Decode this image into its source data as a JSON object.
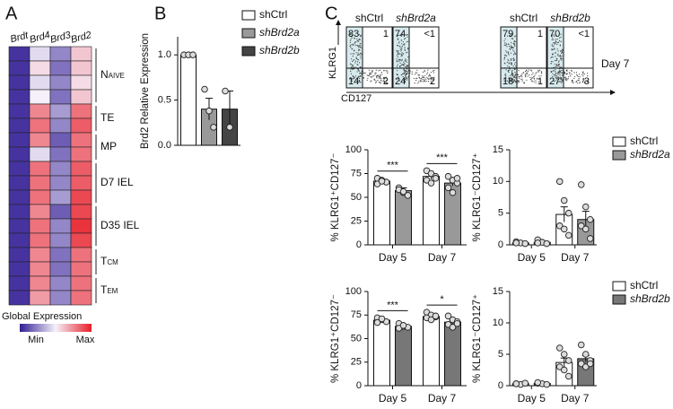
{
  "panels": [
    "A",
    "B",
    "C"
  ],
  "flow_panel": {
    "y_label": "KLRG1",
    "x_label": "CD127",
    "day": "Day 7",
    "plots": [
      {
        "title": "shCtrl",
        "quadrants": [
          "83",
          "1",
          "14",
          "2"
        ]
      },
      {
        "title": "shBrd2a",
        "quadrants": [
          "74",
          "<1",
          "24",
          "2"
        ]
      },
      {
        "title": "shCtrl",
        "quadrants": [
          "79",
          "1",
          "18",
          "1"
        ]
      },
      {
        "title": "shBrd2b",
        "quadrants": [
          "70",
          "<1",
          "27",
          "3"
        ]
      }
    ]
  },
  "chart_data": [
    {
      "type": "heatmap",
      "columns": [
        "Brdt",
        "Brd4",
        "Brd3",
        "Brd2"
      ],
      "groups": [
        {
          "label": "Naive",
          "rows": 4
        },
        {
          "label": "TE",
          "rows": 2
        },
        {
          "label": "MP",
          "rows": 2
        },
        {
          "label": "D7 IEL",
          "rows": 3
        },
        {
          "label": "D35 IEL",
          "rows": 3
        },
        {
          "label": "Tcm",
          "rows": 2
        },
        {
          "label": "Tem",
          "rows": 2
        }
      ],
      "values": [
        [
          0.05,
          0.45,
          0.25,
          0.6
        ],
        [
          0.05,
          0.55,
          0.2,
          0.6
        ],
        [
          0.05,
          0.45,
          0.25,
          0.55
        ],
        [
          0.05,
          0.5,
          0.2,
          0.6
        ],
        [
          0.05,
          0.75,
          0.3,
          0.8
        ],
        [
          0.05,
          0.8,
          0.25,
          0.85
        ],
        [
          0.05,
          0.75,
          0.15,
          0.8
        ],
        [
          0.05,
          0.45,
          0.2,
          0.8
        ],
        [
          0.05,
          0.8,
          0.25,
          0.85
        ],
        [
          0.05,
          0.8,
          0.25,
          0.85
        ],
        [
          0.05,
          0.8,
          0.3,
          0.9
        ],
        [
          0.05,
          0.75,
          0.15,
          0.9
        ],
        [
          0.05,
          0.8,
          0.25,
          0.95
        ],
        [
          0.05,
          0.8,
          0.25,
          0.9
        ],
        [
          0.05,
          0.75,
          0.2,
          0.8
        ],
        [
          0.05,
          0.75,
          0.2,
          0.8
        ],
        [
          0.05,
          0.75,
          0.25,
          0.8
        ],
        [
          0.05,
          0.7,
          0.25,
          0.8
        ]
      ],
      "clim": [
        0,
        1
      ],
      "colorbar_title": "Global Expression",
      "colorbar_labels": [
        "Min",
        "Max"
      ]
    },
    {
      "type": "bar",
      "ylabel": "Brd2 Relative Expression",
      "ylim": [
        0,
        1.2
      ],
      "yticks": [
        {
          "value": 0,
          "label": "0.0"
        },
        {
          "value": 0.5,
          "label": "0.5"
        },
        {
          "value": 1,
          "label": "1.0"
        }
      ],
      "legend": true,
      "series": [
        {
          "name": "shCtrl",
          "color": "#ffffff",
          "values": [
            1.0
          ],
          "errors": [
            0
          ],
          "points": [
            [
              1,
              1,
              1
            ]
          ]
        },
        {
          "name": "shBrd2a",
          "color": "#999999",
          "values": [
            0.4
          ],
          "errors": [
            0.12
          ],
          "points": [
            [
              0.62,
              0.38,
              0.2
            ]
          ]
        },
        {
          "name": "shBrd2b",
          "color": "#444444",
          "values": [
            0.4
          ],
          "errors": [
            0.2
          ],
          "points": [
            [
              0.6,
              0.2
            ]
          ]
        }
      ]
    },
    {
      "type": "bar",
      "ylabel": "% KLRG1⁺CD127⁻",
      "ylim": [
        0,
        100
      ],
      "yticks": [
        0,
        25,
        50,
        75,
        100
      ],
      "legend": true,
      "categories": [
        "Day 5",
        "Day 7"
      ],
      "annotations": [
        "***",
        "***"
      ],
      "series": [
        {
          "name": "shCtrl",
          "color": "#ffffff",
          "values": [
            67,
            72
          ],
          "errors": [
            2,
            3
          ],
          "points": [
            [
              70,
              68,
              66,
              64,
              67
            ],
            [
              78,
              75,
              72,
              68,
              65,
              70
            ]
          ]
        },
        {
          "name": "shBrd2a",
          "color": "#999999",
          "values": [
            57,
            65
          ],
          "errors": [
            3,
            3
          ],
          "points": [
            [
              60,
              55,
              52,
              58,
              56
            ],
            [
              72,
              68,
              65,
              60,
              55,
              70
            ]
          ]
        }
      ]
    },
    {
      "type": "bar",
      "ylabel": "% KLRG1⁻CD127⁺",
      "ylim": [
        0,
        15
      ],
      "yticks": [
        0,
        5,
        10,
        15
      ],
      "legend": false,
      "categories": [
        "Day 5",
        "Day 7"
      ],
      "series": [
        {
          "name": "shCtrl",
          "color": "#ffffff",
          "values": [
            0.3,
            4.8
          ],
          "errors": [
            0.1,
            1.2
          ],
          "points": [
            [
              0.5,
              0.3,
              0.2,
              0.3
            ],
            [
              10,
              7,
              5,
              3,
              2.5,
              1.5
            ]
          ]
        },
        {
          "name": "shBrd2a",
          "color": "#999999",
          "values": [
            0.4,
            4.0
          ],
          "errors": [
            0.15,
            1.3
          ],
          "points": [
            [
              0.8,
              0.4,
              0.2,
              0.3
            ],
            [
              9.5,
              6,
              4,
              3,
              2.5,
              1
            ]
          ]
        }
      ]
    },
    {
      "type": "bar",
      "ylabel": "% KLRG1⁺CD127⁻",
      "ylim": [
        0,
        100
      ],
      "yticks": [
        0,
        25,
        50,
        75,
        100
      ],
      "legend": true,
      "categories": [
        "Day 5",
        "Day 7"
      ],
      "annotations": [
        "***",
        "*"
      ],
      "series": [
        {
          "name": "shCtrl",
          "color": "#ffffff",
          "values": [
            69.5,
            73.5
          ],
          "errors": [
            1.5,
            1.5
          ],
          "points": [
            [
              72,
              70,
              68,
              67,
              71
            ],
            [
              78,
              75,
              73,
              72,
              70,
              74
            ]
          ]
        },
        {
          "name": "shBrd2b",
          "color": "#777777",
          "values": [
            63,
            67.5
          ],
          "errors": [
            1.2,
            2
          ],
          "points": [
            [
              66,
              63,
              62,
              61,
              64
            ],
            [
              74,
              70,
              68,
              65,
              62,
              66
            ]
          ]
        }
      ]
    },
    {
      "type": "bar",
      "ylabel": "% KLRG1⁻CD127⁺",
      "ylim": [
        0,
        15
      ],
      "yticks": [
        0,
        5,
        10,
        15
      ],
      "legend": false,
      "categories": [
        "Day 5",
        "Day 7"
      ],
      "series": [
        {
          "name": "shCtrl",
          "color": "#ffffff",
          "values": [
            0.3,
            3.7
          ],
          "errors": [
            0.1,
            0.7
          ],
          "points": [
            [
              0.3,
              0.2,
              0.4,
              0.3
            ],
            [
              6,
              5,
              4,
              3,
              2.5,
              1.5
            ]
          ]
        },
        {
          "name": "shBrd2b",
          "color": "#777777",
          "values": [
            0.35,
            4.3
          ],
          "errors": [
            0.1,
            0.5
          ],
          "points": [
            [
              0.4,
              0.3,
              0.2,
              0.5
            ],
            [
              6.5,
              5,
              4,
              3.5,
              3,
              3.5
            ]
          ]
        }
      ]
    }
  ]
}
